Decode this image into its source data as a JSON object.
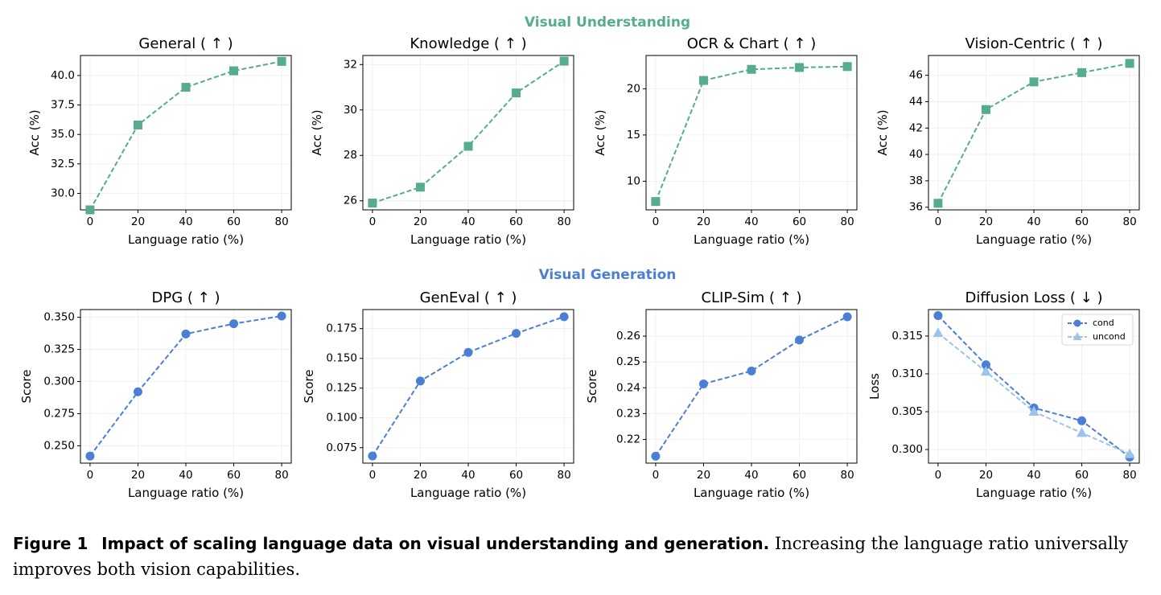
{
  "sections": [
    {
      "title": "Visual Understanding",
      "color": "#55ad8b"
    },
    {
      "title": "Visual Generation",
      "color": "#4a7fd4"
    }
  ],
  "chart_data": [
    {
      "type": "line",
      "title": "General ( ↑ )",
      "xlabel": "Language ratio (%)",
      "ylabel": "Acc (%)",
      "x": [
        0,
        20,
        40,
        60,
        80
      ],
      "xticks": [
        "0",
        "20",
        "40",
        "60",
        "80"
      ],
      "ylim": [
        28.6,
        41.7
      ],
      "yticks": [
        "30.0",
        "32.5",
        "35.0",
        "37.5",
        "40.0"
      ],
      "ytick_values": [
        30.0,
        32.5,
        35.0,
        37.5,
        40.0
      ],
      "series": [
        {
          "values": [
            28.6,
            35.8,
            39.0,
            40.4,
            41.2
          ],
          "color": "#55ad8b",
          "marker": "square"
        }
      ]
    },
    {
      "type": "line",
      "title": "Knowledge ( ↑ )",
      "xlabel": "Language ratio (%)",
      "ylabel": "Acc (%)",
      "x": [
        0,
        20,
        40,
        60,
        80
      ],
      "xticks": [
        "0",
        "20",
        "40",
        "60",
        "80"
      ],
      "ylim": [
        25.6,
        32.4
      ],
      "yticks": [
        "26",
        "28",
        "30",
        "32"
      ],
      "ytick_values": [
        26,
        28,
        30,
        32
      ],
      "series": [
        {
          "values": [
            25.9,
            26.6,
            28.4,
            30.75,
            32.15
          ],
          "color": "#55ad8b",
          "marker": "square"
        }
      ]
    },
    {
      "type": "line",
      "title": "OCR & Chart ( ↑ )",
      "xlabel": "Language ratio (%)",
      "ylabel": "Acc (%)",
      "x": [
        0,
        20,
        40,
        60,
        80
      ],
      "xticks": [
        "0",
        "20",
        "40",
        "60",
        "80"
      ],
      "ylim": [
        6.9,
        23.6
      ],
      "yticks": [
        "10",
        "15",
        "20"
      ],
      "ytick_values": [
        10,
        15,
        20
      ],
      "series": [
        {
          "values": [
            7.8,
            20.9,
            22.1,
            22.3,
            22.4
          ],
          "color": "#55ad8b",
          "marker": "square"
        }
      ]
    },
    {
      "type": "line",
      "title": "Vision-Centric ( ↑ )",
      "xlabel": "Language ratio (%)",
      "ylabel": "Acc (%)",
      "x": [
        0,
        20,
        40,
        60,
        80
      ],
      "xticks": [
        "0",
        "20",
        "40",
        "60",
        "80"
      ],
      "ylim": [
        35.8,
        47.5
      ],
      "yticks": [
        "36",
        "38",
        "40",
        "42",
        "44",
        "46"
      ],
      "ytick_values": [
        36,
        38,
        40,
        42,
        44,
        46
      ],
      "series": [
        {
          "values": [
            36.3,
            43.4,
            45.5,
            46.2,
            46.9
          ],
          "color": "#55ad8b",
          "marker": "square"
        }
      ]
    },
    {
      "type": "line",
      "title": "DPG ( ↑ )",
      "xlabel": "Language ratio (%)",
      "ylabel": "Score",
      "x": [
        0,
        20,
        40,
        60,
        80
      ],
      "xticks": [
        "0",
        "20",
        "40",
        "60",
        "80"
      ],
      "ylim": [
        0.2365,
        0.356
      ],
      "yticks": [
        "0.250",
        "0.275",
        "0.300",
        "0.325",
        "0.350"
      ],
      "ytick_values": [
        0.25,
        0.275,
        0.3,
        0.325,
        0.35
      ],
      "series": [
        {
          "values": [
            0.242,
            0.292,
            0.337,
            0.345,
            0.351
          ],
          "color": "#4a7fd4",
          "marker": "circle"
        }
      ]
    },
    {
      "type": "line",
      "title": "GenEval ( ↑ )",
      "xlabel": "Language ratio (%)",
      "ylabel": "Score",
      "x": [
        0,
        20,
        40,
        60,
        80
      ],
      "xticks": [
        "0",
        "20",
        "40",
        "60",
        "80"
      ],
      "ylim": [
        0.062,
        0.191
      ],
      "yticks": [
        "0.075",
        "0.100",
        "0.125",
        "0.150",
        "0.175"
      ],
      "ytick_values": [
        0.075,
        0.1,
        0.125,
        0.15,
        0.175
      ],
      "series": [
        {
          "values": [
            0.068,
            0.131,
            0.155,
            0.171,
            0.185
          ],
          "color": "#4a7fd4",
          "marker": "circle"
        }
      ]
    },
    {
      "type": "line",
      "title": "CLIP-Sim ( ↑ )",
      "xlabel": "Language ratio (%)",
      "ylabel": "Score",
      "x": [
        0,
        20,
        40,
        60,
        80
      ],
      "xticks": [
        "0",
        "20",
        "40",
        "60",
        "80"
      ],
      "ylim": [
        0.2108,
        0.2703
      ],
      "yticks": [
        "0.22",
        "0.23",
        "0.24",
        "0.25",
        "0.26"
      ],
      "ytick_values": [
        0.22,
        0.23,
        0.24,
        0.25,
        0.26
      ],
      "series": [
        {
          "values": [
            0.2135,
            0.2415,
            0.2465,
            0.2585,
            0.2675
          ],
          "color": "#4a7fd4",
          "marker": "circle"
        }
      ]
    },
    {
      "type": "line",
      "title": "Diffusion Loss ( ↓ )",
      "xlabel": "Language ratio (%)",
      "ylabel": "Loss",
      "x": [
        0,
        20,
        40,
        60,
        80
      ],
      "xticks": [
        "0",
        "20",
        "40",
        "60",
        "80"
      ],
      "ylim": [
        0.2982,
        0.3185
      ],
      "yticks": [
        "0.300",
        "0.305",
        "0.310",
        "0.315"
      ],
      "ytick_values": [
        0.3,
        0.305,
        0.31,
        0.315
      ],
      "legend": "top-right",
      "series": [
        {
          "name": "cond",
          "values": [
            0.3177,
            0.3112,
            0.3055,
            0.3038,
            0.299
          ],
          "color": "#4a7fd4",
          "marker": "circle"
        },
        {
          "name": "uncond",
          "values": [
            0.3154,
            0.3103,
            0.305,
            0.3022,
            0.2994
          ],
          "color": "#9cc4ea",
          "marker": "triangle"
        }
      ]
    }
  ],
  "caption": {
    "label": "Figure 1",
    "title": "Impact of scaling language data on visual understanding and generation.",
    "text": "Increasing the language ratio universally improves both vision capabilities."
  }
}
